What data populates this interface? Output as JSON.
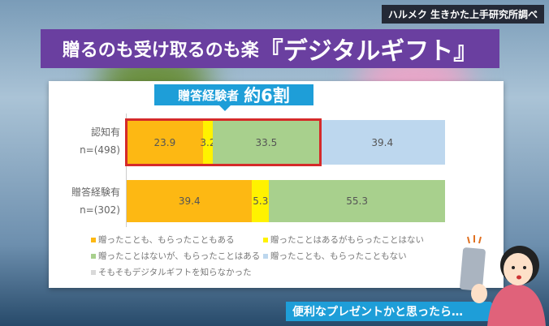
{
  "source": "ハルメク 生きかた上手研究所調べ",
  "title": {
    "prefix": "贈るのも受け取るのも楽",
    "highlight": "『デジタルギフト』"
  },
  "callout": {
    "label": "贈答経験者",
    "value": "約6割"
  },
  "caption": "便利なプレゼントかと思ったら…",
  "colors": {
    "orange": "#fdb813",
    "yellow": "#fff200",
    "green": "#a8d08d",
    "blue": "#bdd7ee",
    "gray": "#d9d9d9",
    "highlight_box": "#d52a2a"
  },
  "chart_data": {
    "type": "bar",
    "orientation": "horizontal-stacked-100",
    "categories": [
      {
        "name": "認知有",
        "n": "n=(498)"
      },
      {
        "name": "贈答経験有",
        "n": "n=(302)"
      }
    ],
    "series": [
      {
        "name": "贈ったことも、もらったこともある",
        "color": "#fdb813",
        "values": [
          23.9,
          39.4
        ]
      },
      {
        "name": "贈ったことはあるがもらったことはない",
        "color": "#fff200",
        "values": [
          3.2,
          5.3
        ]
      },
      {
        "name": "贈ったことはないが、もらったことはある",
        "color": "#a8d08d",
        "values": [
          33.5,
          55.3
        ]
      },
      {
        "name": "贈ったことも、もらったこともない",
        "color": "#bdd7ee",
        "values": [
          39.4,
          null
        ]
      },
      {
        "name": "そもそもデジタルギフトを知らなかった",
        "color": "#d9d9d9",
        "values": [
          null,
          null
        ]
      }
    ],
    "xlim": [
      0,
      100
    ],
    "legend": "bottom"
  }
}
